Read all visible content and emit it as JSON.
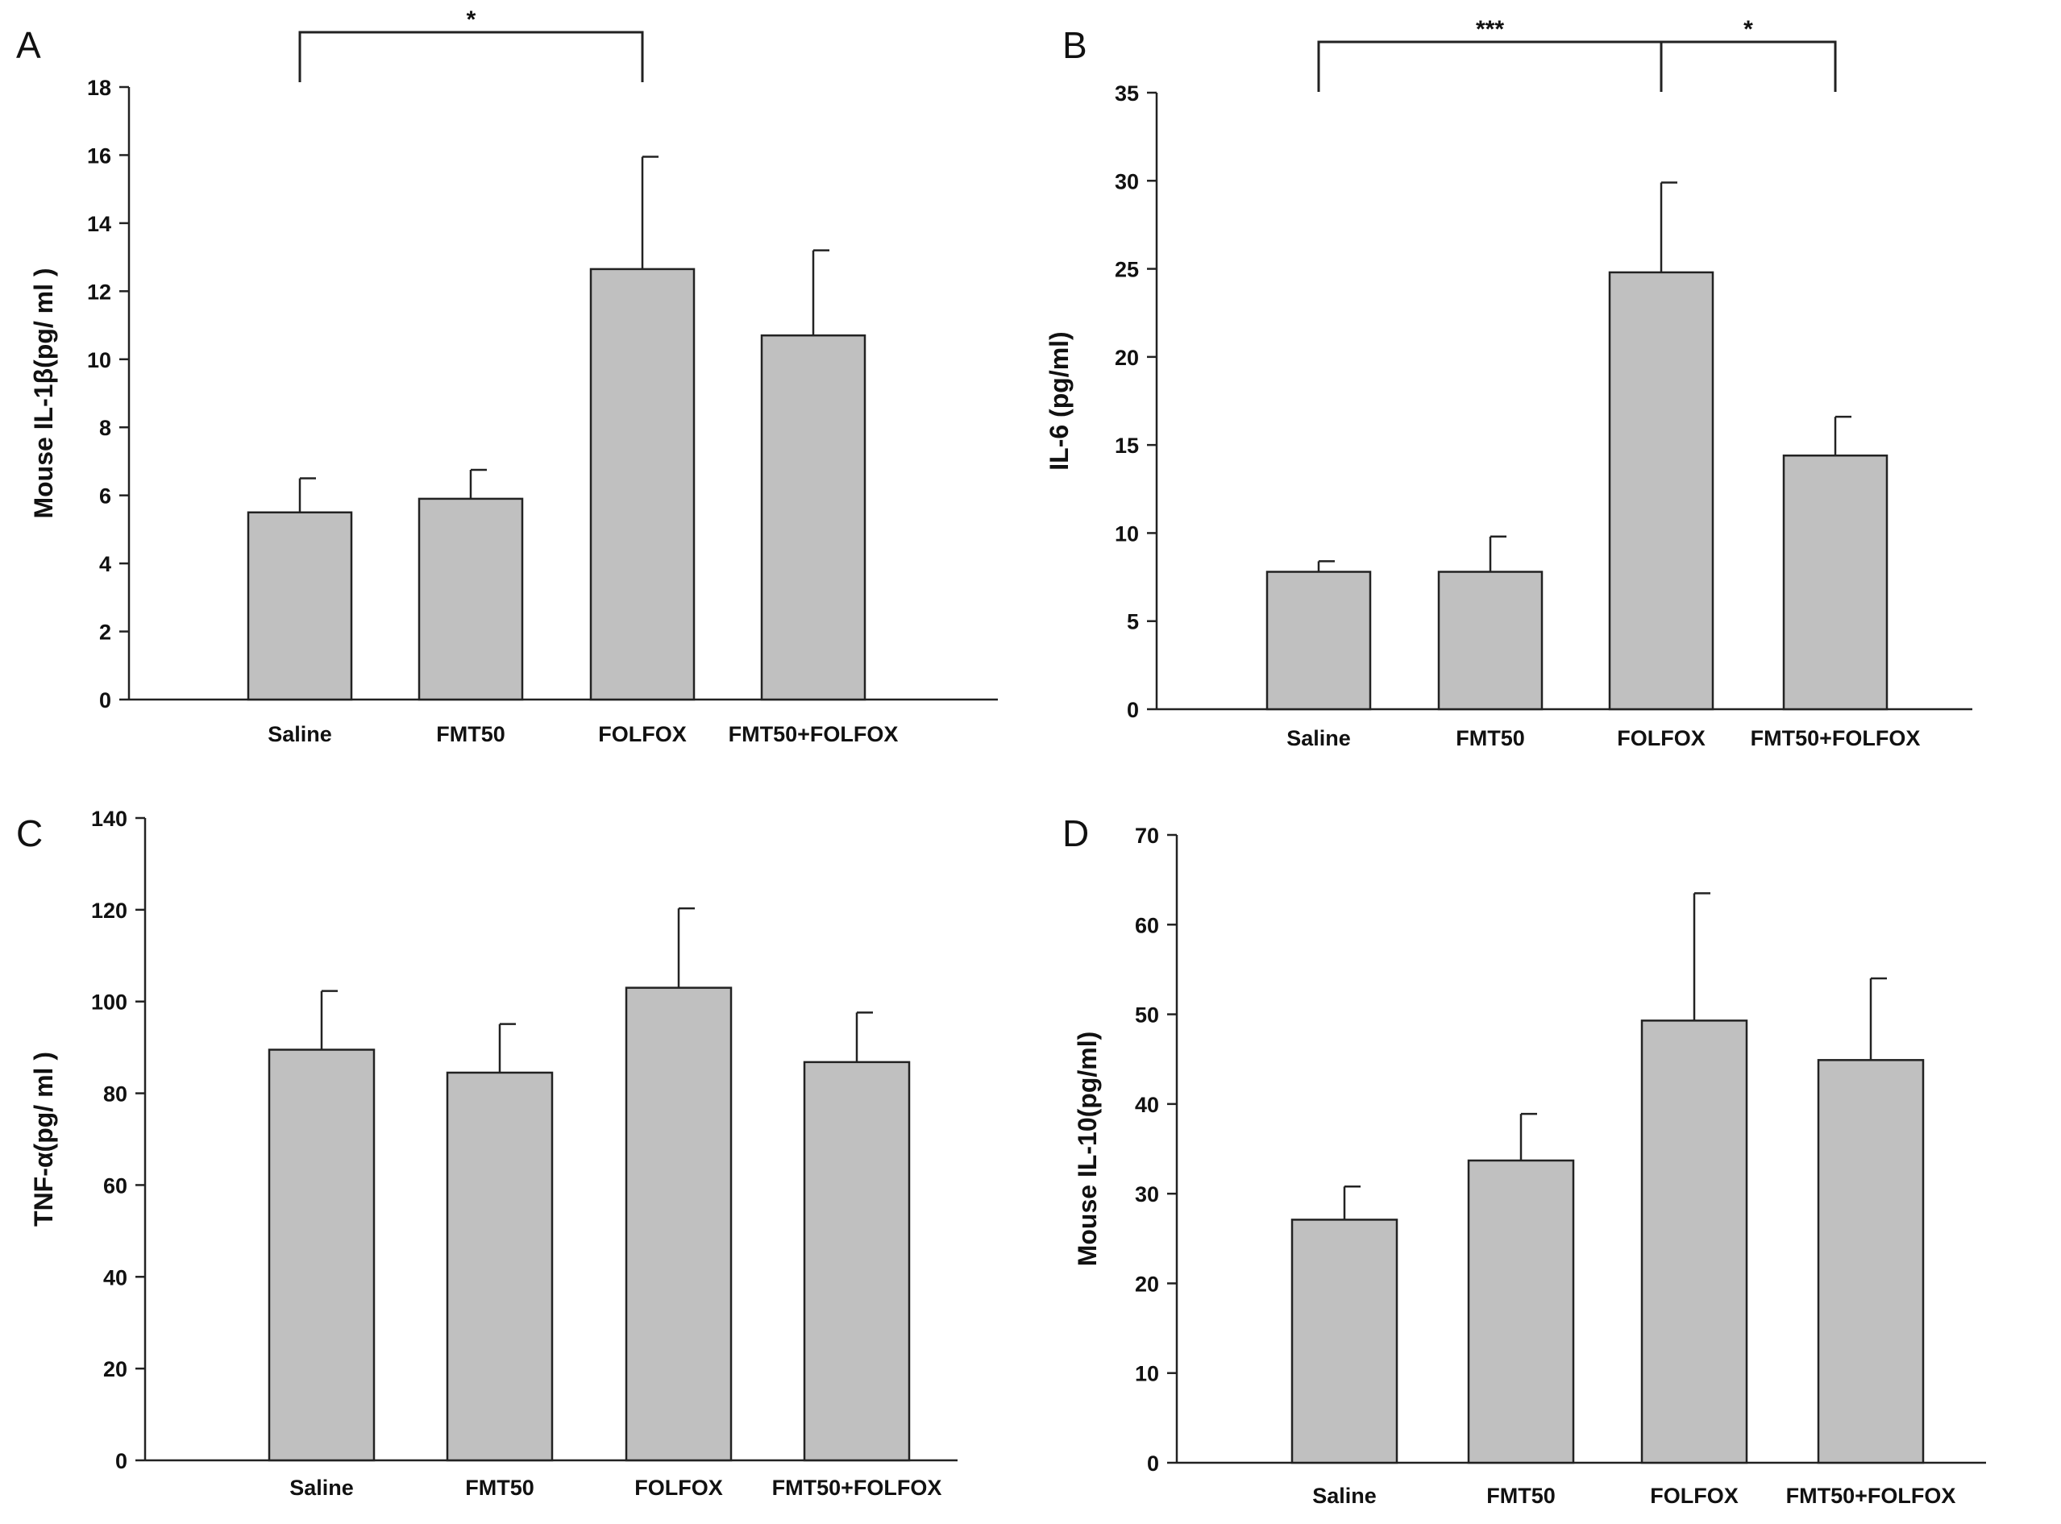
{
  "figure": {
    "bar_color": "#c0c0c0",
    "line_color": "#222222"
  },
  "chart_data": [
    {
      "panel": "A",
      "type": "bar",
      "ylabel": "Mouse IL-1β(pg/ ml )",
      "categories": [
        "Saline",
        "FMT50",
        "FOLFOX",
        "FMT50+FOLFOX"
      ],
      "values": [
        5.5,
        5.9,
        12.65,
        10.7
      ],
      "errors": [
        1.0,
        0.85,
        3.3,
        2.5
      ],
      "ylim": [
        0,
        18
      ],
      "yticks": [
        0,
        2,
        4,
        6,
        8,
        10,
        12,
        14,
        16,
        18
      ],
      "significance": [
        {
          "from": 0,
          "to": 2,
          "label": "*"
        }
      ]
    },
    {
      "panel": "B",
      "type": "bar",
      "ylabel": "IL-6 (pg/ml)",
      "categories": [
        "Saline",
        "FMT50",
        "FOLFOX",
        "FMT50+FOLFOX"
      ],
      "values": [
        7.8,
        7.8,
        24.8,
        14.4
      ],
      "errors": [
        0.6,
        2.0,
        5.1,
        2.2
      ],
      "ylim": [
        0,
        35
      ],
      "yticks": [
        0,
        5,
        10,
        15,
        20,
        25,
        30,
        35
      ],
      "significance": [
        {
          "from": 0,
          "to": 2,
          "label": "***"
        },
        {
          "from": 2,
          "to": 3,
          "label": "*"
        }
      ]
    },
    {
      "panel": "C",
      "type": "bar",
      "ylabel": "TNF-α(pg/ ml )",
      "categories": [
        "Saline",
        "FMT50",
        "FOLFOX",
        "FMT50+FOLFOX"
      ],
      "values": [
        89.5,
        84.5,
        103,
        86.8
      ],
      "errors": [
        12.8,
        10.6,
        17.3,
        10.8
      ],
      "ylim": [
        0,
        140
      ],
      "yticks": [
        0,
        20,
        40,
        60,
        80,
        100,
        120,
        140
      ],
      "significance": []
    },
    {
      "panel": "D",
      "type": "bar",
      "ylabel": "Mouse IL-10(pg/ml)",
      "categories": [
        "Saline",
        "FMT50",
        "FOLFOX",
        "FMT50+FOLFOX"
      ],
      "values": [
        27.1,
        33.7,
        49.3,
        44.9
      ],
      "errors": [
        3.7,
        5.2,
        14.2,
        9.1
      ],
      "ylim": [
        0,
        70
      ],
      "yticks": [
        0,
        10,
        20,
        30,
        40,
        50,
        60,
        70
      ],
      "significance": []
    }
  ]
}
